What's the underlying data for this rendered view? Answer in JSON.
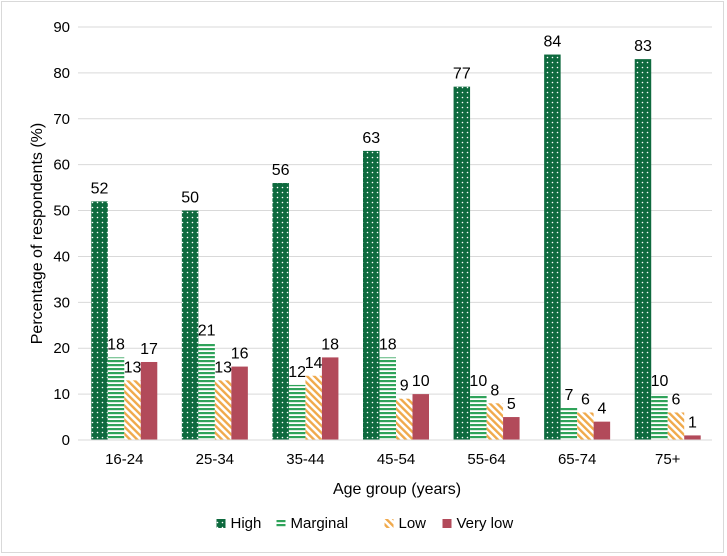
{
  "chart_data": {
    "type": "bar",
    "title": "",
    "xlabel": "Age group (years)",
    "ylabel": "Percentage of respondents (%)",
    "ylim": [
      0,
      90
    ],
    "yticks": [
      "0",
      "10",
      "20",
      "30",
      "40",
      "50",
      "60",
      "70",
      "80",
      "90"
    ],
    "categories": [
      "16-24",
      "25-34",
      "35-44",
      "45-54",
      "55-64",
      "65-74",
      "75+"
    ],
    "series": [
      {
        "name": "High",
        "values": [
          52,
          50,
          56,
          63,
          77,
          84,
          83
        ],
        "color": "#0e6a3e",
        "pattern": "dots"
      },
      {
        "name": "Marginal",
        "values": [
          18,
          21,
          12,
          18,
          10,
          7,
          10
        ],
        "color": "#2fa35a",
        "pattern": "horizontal-lines"
      },
      {
        "name": "Low",
        "values": [
          13,
          13,
          14,
          9,
          8,
          6,
          6
        ],
        "color": "#f0a94b",
        "pattern": "diagonal-lines"
      },
      {
        "name": "Very low",
        "values": [
          17,
          16,
          18,
          10,
          5,
          4,
          1
        ],
        "color": "#b24a5a",
        "pattern": "solid"
      }
    ],
    "legend_position": "bottom",
    "grid": true
  }
}
